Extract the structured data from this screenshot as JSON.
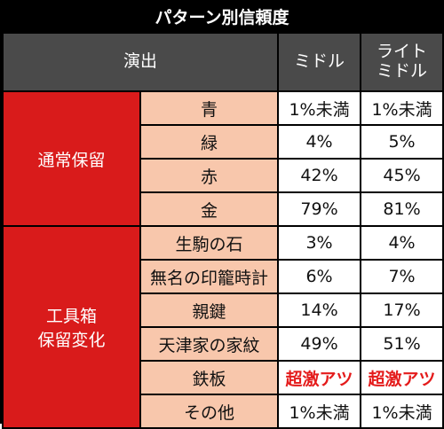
{
  "title": "パターン別信頼度",
  "columns": {
    "presentation": "演出",
    "col1": "ミドル",
    "col2_line1": "ライト",
    "col2_line2": "ミドル"
  },
  "groups": [
    {
      "name_line1": "通常保留",
      "name_line2": "",
      "rows": [
        {
          "label": "青",
          "middle": "1%未満",
          "light_middle": "1%未満"
        },
        {
          "label": "緑",
          "middle": "4%",
          "light_middle": "5%"
        },
        {
          "label": "赤",
          "middle": "42%",
          "light_middle": "45%"
        },
        {
          "label": "金",
          "middle": "79%",
          "light_middle": "81%"
        }
      ]
    },
    {
      "name_line1": "工具箱",
      "name_line2": "保留変化",
      "rows": [
        {
          "label": "生駒の石",
          "middle": "3%",
          "light_middle": "4%"
        },
        {
          "label": "無名の印籠時計",
          "middle": "6%",
          "light_middle": "7%"
        },
        {
          "label": "親鍵",
          "middle": "14%",
          "light_middle": "17%"
        },
        {
          "label": "天津家の家紋",
          "middle": "49%",
          "light_middle": "51%"
        },
        {
          "label": "鉄板",
          "middle": "超激アツ",
          "light_middle": "超激アツ"
        },
        {
          "label": "その他",
          "middle": "1%未満",
          "light_middle": "1%未満"
        }
      ]
    }
  ],
  "colors": {
    "header_bg": "#4a4a4a",
    "group_bg": "#d91b1b",
    "label_bg": "#f8c7ac",
    "hot_text": "#e41b1b"
  }
}
